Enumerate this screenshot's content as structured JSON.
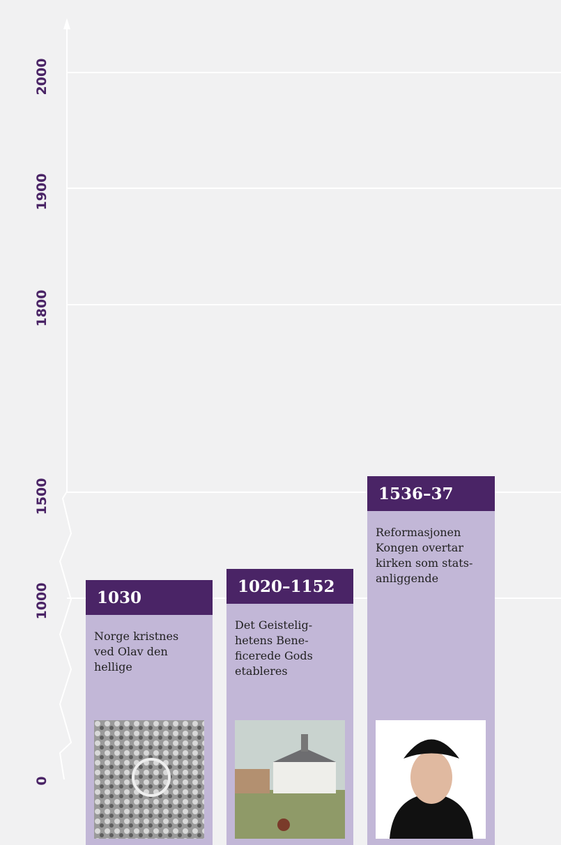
{
  "axis": {
    "labels": [
      "2000",
      "1900",
      "1800",
      "1500",
      "1000",
      "0"
    ]
  },
  "events": [
    {
      "date": "1030",
      "lines": [
        "Norge kristnes",
        "ved Olav den",
        "hellige"
      ]
    },
    {
      "date": "1020–1152",
      "lines": [
        "Det Geistelig-",
        "hetens Bene-",
        "ficerede Gods",
        "etableres"
      ]
    },
    {
      "date": "1536–37",
      "lines": [
        "Reformasjonen",
        "Kongen overtar",
        "kirken som stats-",
        "anliggende"
      ]
    }
  ]
}
